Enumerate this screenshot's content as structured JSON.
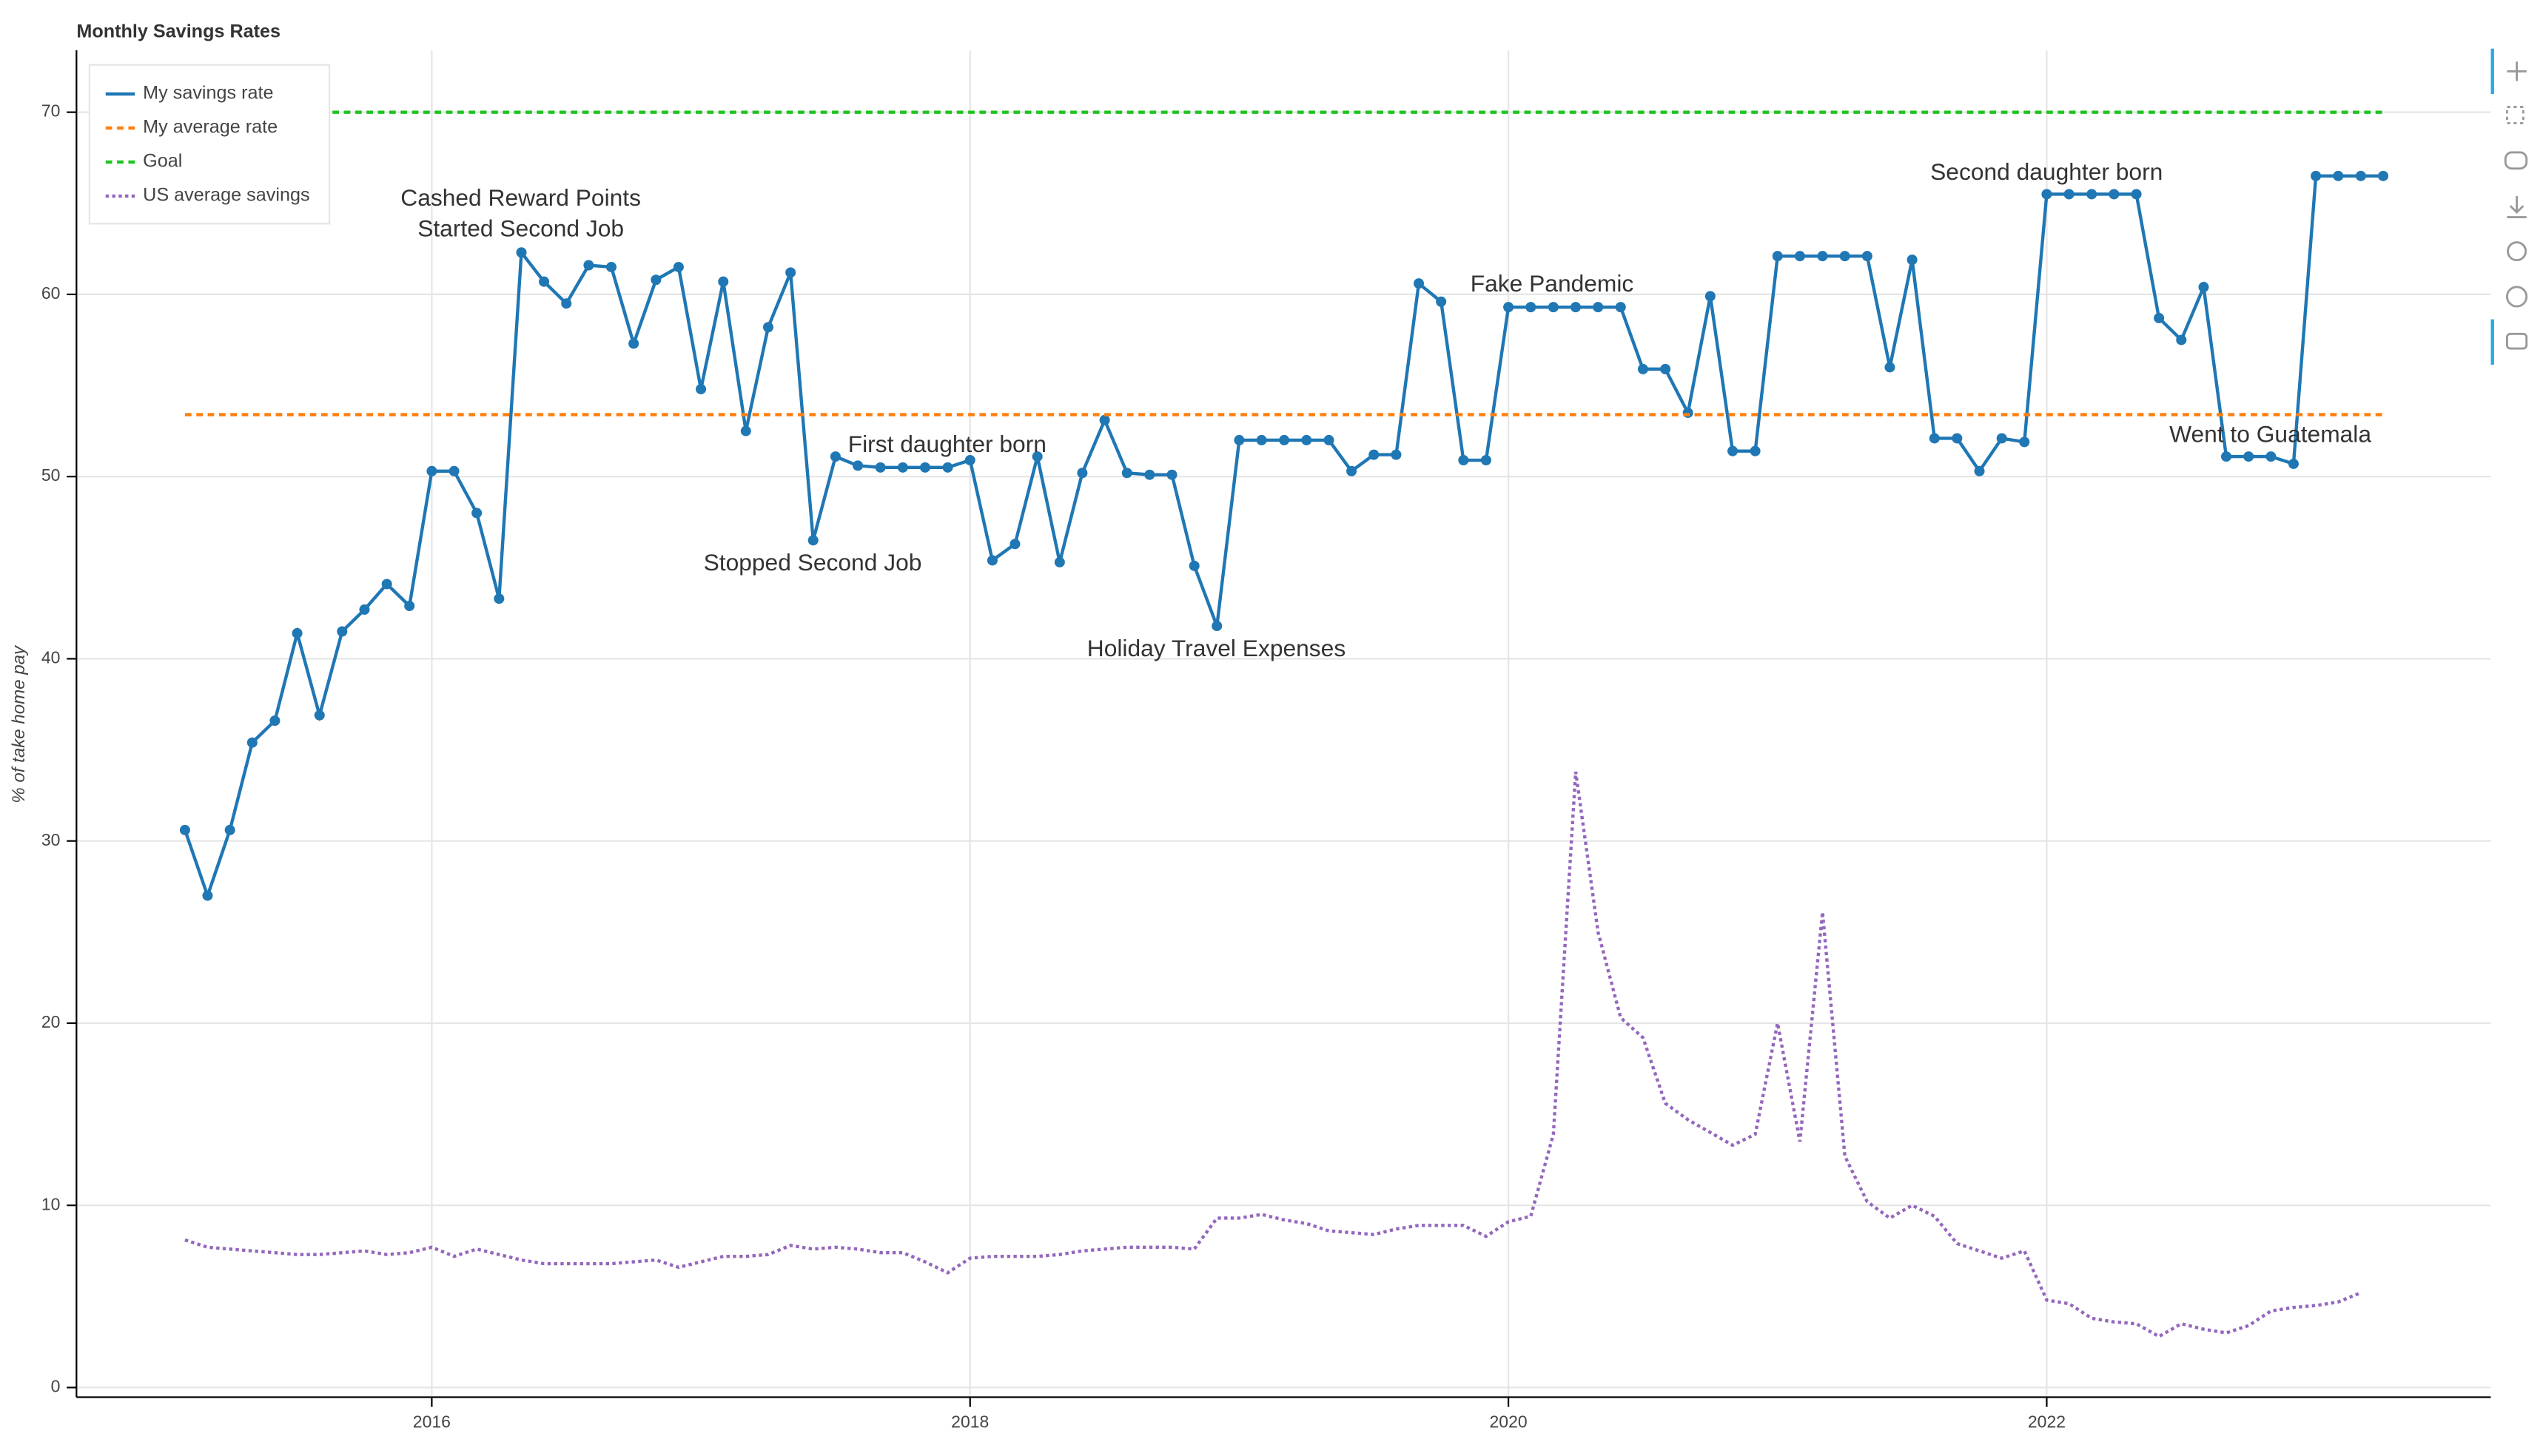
{
  "chart_data": {
    "type": "line",
    "title": "Monthly Savings Rates",
    "y_label": "% of take home pay",
    "x": [
      2015.083,
      2015.167,
      2015.25,
      2015.333,
      2015.417,
      2015.5,
      2015.583,
      2015.667,
      2015.75,
      2015.833,
      2015.917,
      2016,
      2016.083,
      2016.167,
      2016.25,
      2016.333,
      2016.417,
      2016.5,
      2016.583,
      2016.667,
      2016.75,
      2016.833,
      2016.917,
      2017,
      2017.083,
      2017.167,
      2017.25,
      2017.333,
      2017.417,
      2017.5,
      2017.583,
      2017.667,
      2017.75,
      2017.833,
      2017.917,
      2018,
      2018.083,
      2018.167,
      2018.25,
      2018.333,
      2018.417,
      2018.5,
      2018.583,
      2018.667,
      2018.75,
      2018.833,
      2018.917,
      2019,
      2019.083,
      2019.167,
      2019.25,
      2019.333,
      2019.417,
      2019.5,
      2019.583,
      2019.667,
      2019.75,
      2019.833,
      2019.917,
      2020,
      2020.083,
      2020.167,
      2020.25,
      2020.333,
      2020.417,
      2020.5,
      2020.583,
      2020.667,
      2020.75,
      2020.833,
      2020.917,
      2021,
      2021.083,
      2021.167,
      2021.25,
      2021.333,
      2021.417,
      2021.5,
      2021.583,
      2021.667,
      2021.75,
      2021.833,
      2021.917,
      2022,
      2022.083,
      2022.167,
      2022.25,
      2022.333,
      2022.417,
      2022.5,
      2022.583,
      2022.667,
      2022.75,
      2022.833,
      2022.917,
      2023,
      2023.083,
      2023.167,
      2023.25
    ],
    "series": [
      {
        "name": "My savings rate",
        "color": "#1f77b4",
        "style": "solid",
        "markers": true,
        "values": [
          30.6,
          27.0,
          30.6,
          35.4,
          36.6,
          41.4,
          36.9,
          41.5,
          42.7,
          44.1,
          42.9,
          50.3,
          50.3,
          48.0,
          43.3,
          62.3,
          60.7,
          59.5,
          61.6,
          61.5,
          57.3,
          60.8,
          61.5,
          54.8,
          60.7,
          52.5,
          58.2,
          61.2,
          46.5,
          51.1,
          50.6,
          50.5,
          50.5,
          50.5,
          50.5,
          50.9,
          45.4,
          46.3,
          51.1,
          45.3,
          50.2,
          53.1,
          50.2,
          50.1,
          50.1,
          45.1,
          41.8,
          52.0,
          52.0,
          52.0,
          52.0,
          52.0,
          50.3,
          51.2,
          51.2,
          60.6,
          59.6,
          50.9,
          50.9,
          59.3,
          59.3,
          59.3,
          59.3,
          59.3,
          59.3,
          55.9,
          55.9,
          53.5,
          59.9,
          51.4,
          51.4,
          62.1,
          62.1,
          62.1,
          62.1,
          62.1,
          56.0,
          61.9,
          52.1,
          52.1,
          50.3,
          52.1,
          51.9,
          65.5,
          65.5,
          65.5,
          65.5,
          65.5,
          58.7,
          57.5,
          60.4,
          51.1,
          51.1,
          51.1,
          50.7,
          66.5,
          66.5,
          66.5,
          66.5
        ]
      },
      {
        "name": "My average rate",
        "color": "#ff7f0e",
        "style": "dashed",
        "markers": false,
        "x": [
          2015.083,
          2023.25
        ],
        "values": [
          53.4,
          53.4
        ]
      },
      {
        "name": "Goal",
        "color": "#1fc41f",
        "style": "dashed",
        "markers": false,
        "x": [
          2015.083,
          2023.25
        ],
        "values": [
          70,
          70
        ]
      },
      {
        "name": "US average savings",
        "color": "#9467bd",
        "style": "dotted",
        "markers": false,
        "values": [
          8.1,
          7.7,
          7.6,
          7.5,
          7.4,
          7.3,
          7.3,
          7.4,
          7.5,
          7.3,
          7.4,
          7.7,
          7.2,
          7.6,
          7.3,
          7.0,
          6.8,
          6.8,
          6.8,
          6.8,
          6.9,
          7.0,
          6.6,
          6.9,
          7.2,
          7.2,
          7.3,
          7.8,
          7.6,
          7.7,
          7.6,
          7.4,
          7.4,
          6.9,
          6.3,
          7.1,
          7.2,
          7.2,
          7.2,
          7.3,
          7.5,
          7.6,
          7.7,
          7.7,
          7.7,
          7.6,
          9.3,
          9.3,
          9.5,
          9.2,
          9.0,
          8.6,
          8.5,
          8.4,
          8.7,
          8.9,
          8.9,
          8.9,
          8.3,
          9.1,
          9.4,
          13.9,
          33.8,
          25.0,
          20.3,
          19.2,
          15.6,
          14.7,
          14.0,
          13.3,
          13.9,
          20.0,
          13.5,
          26.1,
          12.7,
          10.2,
          9.3,
          10.0,
          9.4,
          7.9,
          7.5,
          7.1,
          7.5,
          4.8,
          4.6,
          3.8,
          3.6,
          3.5,
          2.8,
          3.5,
          3.2,
          3.0,
          3.4,
          4.2,
          4.4,
          4.5,
          4.7,
          5.2,
          null
        ]
      }
    ],
    "annotations": [
      "Cashed Reward Points",
      "Started Second Job",
      "First daughter born",
      "Stopped Second Job",
      "Holiday Travel Expenses",
      "Fake Pandemic",
      "Second daughter born",
      "Went to Guatemala"
    ],
    "xlim": [
      2014.68,
      2023.65
    ],
    "xticks": [
      2016,
      2018,
      2020,
      2022
    ],
    "ylim": [
      -0.53,
      73.4
    ],
    "yticks": [
      0,
      10,
      20,
      30,
      40,
      50,
      60,
      70
    ],
    "grid": true,
    "legend": "top_left"
  }
}
